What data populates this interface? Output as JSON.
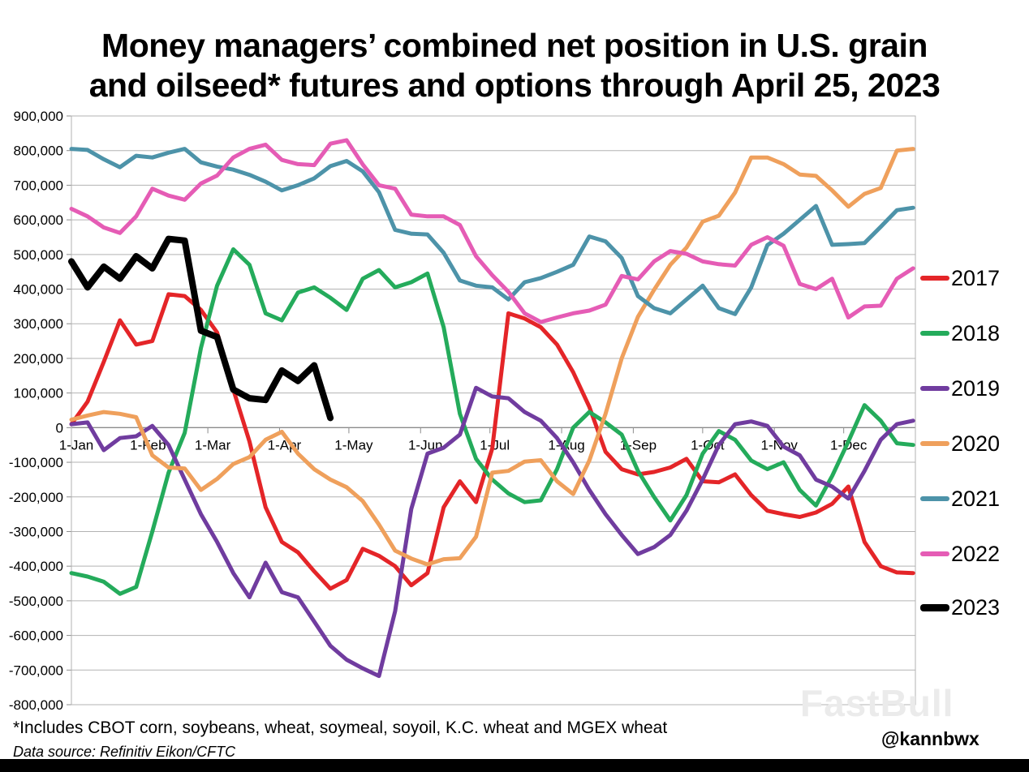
{
  "title": {
    "line1": "Money managers’ combined net position in U.S. grain",
    "line2": "and oilseed* futures and options through April 25, 2023"
  },
  "footnotes": {
    "includes": "*Includes CBOT corn, soybeans, wheat, soymeal, soyoil, K.C. wheat and MGEX wheat",
    "source": "Data source: Refinitiv Eikon/CFTC"
  },
  "handle": "@kannbwx",
  "watermark": "FastBull",
  "colors": {
    "grid": "#b3b3b3",
    "zero_axis": "#8c8c8c",
    "tick": "#8c8c8c",
    "text": "#000000",
    "bottom_bar": "#000000"
  },
  "chart_data": {
    "type": "line",
    "title": "Money managers’ combined net position in U.S. grain and oilseed* futures and options through April 25, 2023",
    "xlabel": "",
    "ylabel": "",
    "ylim": [
      -800000,
      900000
    ],
    "y_tick_step": 100000,
    "grid": "horizontal",
    "legend_position": "right",
    "x_tick_labels": [
      "1-Jan",
      "1-Feb",
      "1-Mar",
      "1-Apr",
      "1-May",
      "1-Jun",
      "1-Jul",
      "1-Aug",
      "1-Sep",
      "1-Oct",
      "1-Nov",
      "1-Dec"
    ],
    "x_tick_days": [
      0,
      31,
      59,
      90,
      120,
      151,
      181,
      212,
      243,
      273,
      304,
      334
    ],
    "x_range_days": [
      0,
      365
    ],
    "observation_step_days": 7,
    "value_scale": 1000,
    "note": "values_thousands are weekly net positions in thousands; multiply by value_scale for axis units",
    "series": [
      {
        "name": "2017",
        "color": "#e42528",
        "stroke_width": 5,
        "values_thousands": [
          10,
          75,
          190,
          310,
          240,
          250,
          385,
          380,
          340,
          275,
          110,
          -40,
          -230,
          -330,
          -360,
          -415,
          -465,
          -440,
          -350,
          -370,
          -400,
          -455,
          -420,
          -230,
          -155,
          -215,
          -60,
          330,
          315,
          290,
          240,
          160,
          60,
          -70,
          -120,
          -135,
          -128,
          -115,
          -90,
          -155,
          -158,
          -135,
          -195,
          -240,
          -250,
          -258,
          -245,
          -220,
          -170,
          -330,
          -400,
          -418,
          -420
        ]
      },
      {
        "name": "2018",
        "color": "#24ab5b",
        "stroke_width": 5,
        "values_thousands": [
          -420,
          -430,
          -445,
          -480,
          -460,
          -300,
          -130,
          -15,
          230,
          410,
          515,
          470,
          330,
          310,
          390,
          405,
          375,
          340,
          430,
          455,
          405,
          420,
          445,
          290,
          40,
          -90,
          -150,
          -190,
          -215,
          -210,
          -120,
          0,
          45,
          15,
          -20,
          -125,
          -200,
          -268,
          -195,
          -75,
          -10,
          -35,
          -95,
          -120,
          -100,
          -180,
          -225,
          -140,
          -40,
          65,
          20,
          -45,
          -50
        ]
      },
      {
        "name": "2019",
        "color": "#703c9f",
        "stroke_width": 5,
        "values_thousands": [
          10,
          15,
          -65,
          -30,
          -25,
          5,
          -50,
          -150,
          -250,
          -330,
          -420,
          -490,
          -390,
          -475,
          -490,
          -560,
          -630,
          -670,
          -695,
          -717,
          -530,
          -235,
          -75,
          -58,
          -20,
          115,
          90,
          85,
          45,
          20,
          -30,
          -100,
          -180,
          -250,
          -310,
          -365,
          -345,
          -310,
          -240,
          -150,
          -50,
          10,
          18,
          5,
          -55,
          -80,
          -150,
          -170,
          -205,
          -125,
          -35,
          10,
          20
        ]
      },
      {
        "name": "2020",
        "color": "#efa05c",
        "stroke_width": 5,
        "values_thousands": [
          23,
          35,
          45,
          40,
          30,
          -80,
          -115,
          -118,
          -180,
          -148,
          -105,
          -85,
          -35,
          -12,
          -75,
          -120,
          -150,
          -172,
          -212,
          -280,
          -355,
          -378,
          -395,
          -380,
          -377,
          -315,
          -130,
          -125,
          -98,
          -94,
          -155,
          -192,
          -95,
          40,
          200,
          320,
          398,
          470,
          520,
          595,
          612,
          679,
          780,
          780,
          761,
          731,
          727,
          685,
          638,
          675,
          692,
          800,
          805
        ]
      },
      {
        "name": "2021",
        "color": "#4d93a9",
        "stroke_width": 5,
        "values_thousands": [
          805,
          802,
          775,
          752,
          785,
          780,
          794,
          805,
          766,
          754,
          745,
          730,
          710,
          685,
          700,
          720,
          755,
          770,
          740,
          680,
          571,
          560,
          558,
          505,
          425,
          410,
          405,
          370,
          420,
          432,
          450,
          470,
          552,
          538,
          490,
          380,
          345,
          330,
          370,
          410,
          345,
          328,
          405,
          527,
          560,
          600,
          640,
          528,
          530,
          533,
          580,
          628,
          635
        ]
      },
      {
        "name": "2022",
        "color": "#e55cb5",
        "stroke_width": 5,
        "values_thousands": [
          632,
          610,
          578,
          562,
          610,
          690,
          670,
          658,
          705,
          728,
          780,
          805,
          817,
          773,
          761,
          758,
          820,
          830,
          760,
          700,
          690,
          615,
          610,
          610,
          585,
          495,
          440,
          392,
          330,
          305,
          318,
          330,
          338,
          355,
          438,
          428,
          480,
          510,
          502,
          480,
          472,
          468,
          528,
          550,
          525,
          415,
          400,
          430,
          318,
          350,
          352,
          430,
          460
        ]
      },
      {
        "name": "2023",
        "color": "#000000",
        "stroke_width": 8,
        "values_thousands": [
          480,
          405,
          465,
          430,
          495,
          460,
          545,
          540,
          280,
          262,
          110,
          85,
          80,
          165,
          135,
          180,
          28
        ]
      }
    ]
  }
}
